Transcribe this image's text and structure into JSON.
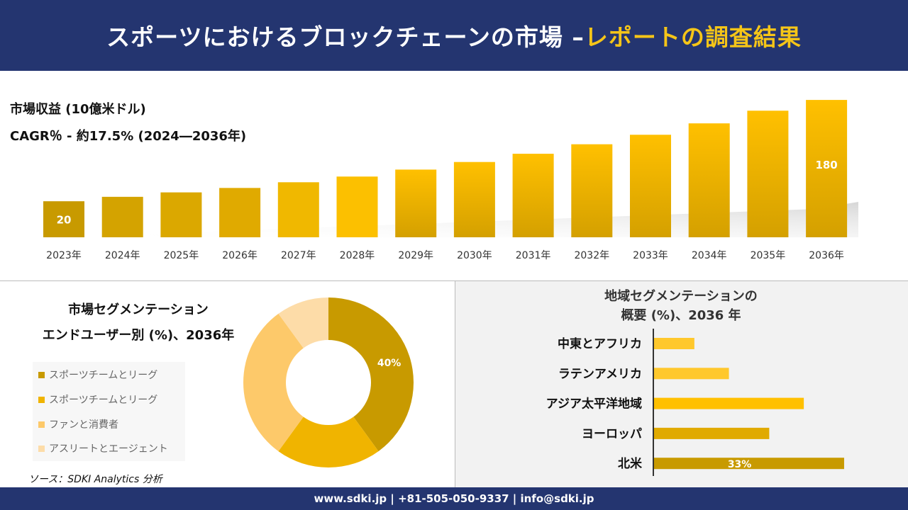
{
  "header": {
    "title_main": "スポーツにおけるブロックチェーンの市場 –",
    "title_highlight": "レポートの調査結果"
  },
  "colors": {
    "navy": "#243570",
    "accent": "#f5c518",
    "bar_dark": "#c89a00",
    "bar_gold": "#ffc000"
  },
  "chart_data": [
    {
      "type": "bar",
      "title": "市場収益 (10億米ドル)",
      "subtitle": "CAGR％ - 約17.5% (2024―2036年)",
      "categories": [
        "2023年",
        "2024年",
        "2025年",
        "2026年",
        "2027年",
        "2028年",
        "2029年",
        "2030年",
        "2031年",
        "2032年",
        "2033年",
        "2034年",
        "2035年",
        "2036年"
      ],
      "values": [
        20,
        27,
        34,
        41,
        50,
        59,
        70,
        82,
        95,
        110,
        125,
        143,
        163,
        180
      ],
      "data_labels": {
        "0": "20",
        "13": "180"
      },
      "grid": false
    },
    {
      "type": "pie",
      "title_line1": "市場セグメンテーション",
      "title_line2": "エンドユーザー別 (%)、2036年",
      "categories": [
        "スポーツチームとリーグ",
        "スポーツチームとリーグ",
        "ファンと消費者",
        "アスリートとエージェント"
      ],
      "values": [
        40,
        20,
        30,
        10
      ],
      "colors": [
        "#c89a00",
        "#f0b400",
        "#fdc96a",
        "#fddca8"
      ],
      "data_labels": {
        "0": "40%"
      },
      "legend": "left"
    },
    {
      "type": "bar",
      "orientation": "horizontal",
      "title_line1": "地域セグメンテーションの",
      "title_line2": "概要 (%)、2036 年",
      "categories": [
        "中東とアフリカ",
        "ラテンアメリカ",
        "アジア太平洋地域",
        "ヨーロッパ",
        "北米"
      ],
      "values": [
        7,
        13,
        26,
        20,
        33
      ],
      "colors": [
        "#ffc82c",
        "#ffc82c",
        "#ffc000",
        "#e0aa00",
        "#c89a00"
      ],
      "data_labels": {
        "4": "33%"
      }
    }
  ],
  "source": "ソース：SDKI Analytics 分析",
  "footer": "www.sdki.jp | +81-505-050-9337 | info@sdki.jp"
}
